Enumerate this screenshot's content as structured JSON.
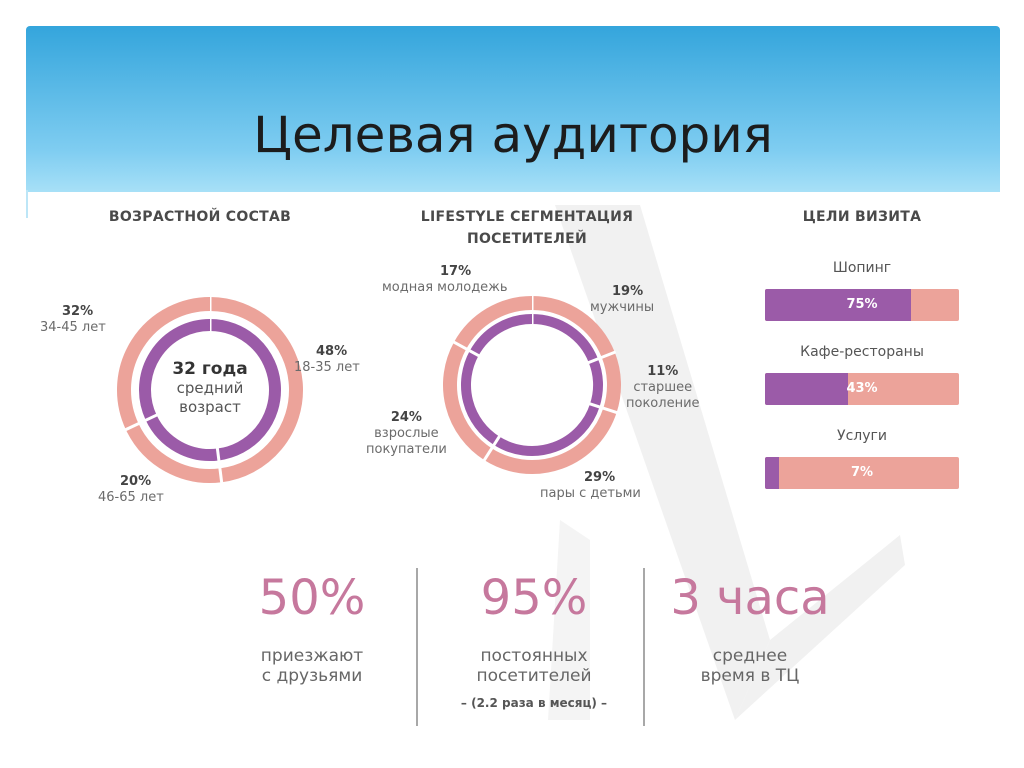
{
  "header": {
    "title": "Целевая аудитория"
  },
  "colors": {
    "outer_ring": "#eca39a",
    "inner_ring": "#9b5ba8",
    "accent_number": "#c6789d",
    "header_gradient_top": "#34a5dc",
    "header_gradient_bottom": "#a7e0f7"
  },
  "chart_data": [
    {
      "type": "pie",
      "title": "ВОЗРАСТНОЙ СОСТАВ",
      "center": {
        "value": "32 года",
        "text_line1": "средний",
        "text_line2": "возраст"
      },
      "slices": [
        {
          "pct": "32%",
          "label": "34-45 лет",
          "value": 32
        },
        {
          "pct": "48%",
          "label": "18-35 лет",
          "value": 48
        },
        {
          "pct": "20%",
          "label": "46-65 лет",
          "value": 20
        }
      ]
    },
    {
      "type": "pie",
      "title_line1": "LIFESTYLE СЕГМЕНТАЦИЯ",
      "title_line2": "ПОСЕТИТЕЛЕЙ",
      "slices": [
        {
          "pct": "17%",
          "label_line1": "модная молодежь",
          "label_line2": "",
          "value": 17
        },
        {
          "pct": "19%",
          "label_line1": "мужчины",
          "label_line2": "",
          "value": 19
        },
        {
          "pct": "11%",
          "label_line1": "старшее",
          "label_line2": "поколение",
          "value": 11
        },
        {
          "pct": "29%",
          "label_line1": "пары с детьми",
          "label_line2": "",
          "value": 29
        },
        {
          "pct": "24%",
          "label_line1": "взрослые",
          "label_line2": "покупатели",
          "value": 24
        }
      ]
    },
    {
      "type": "bar",
      "title": "ЦЕЛИ ВИЗИТА",
      "categories": [
        "Шопинг",
        "Кафе-рестораны",
        "Услуги"
      ],
      "values": [
        75,
        43,
        7
      ],
      "value_labels": [
        "75%",
        "43%",
        "7%"
      ],
      "ylim": [
        0,
        100
      ]
    }
  ],
  "stats": [
    {
      "number": "50%",
      "line1": "приезжают",
      "line2": "с друзьями",
      "note": ""
    },
    {
      "number": "95%",
      "line1": "постоянных",
      "line2": "посетителей",
      "note": "– (2.2 раза в месяц) –"
    },
    {
      "number": "3 часа",
      "line1": "среднее",
      "line2": "время в ТЦ",
      "note": ""
    }
  ]
}
